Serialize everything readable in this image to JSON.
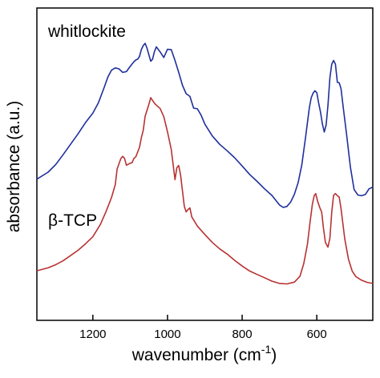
{
  "chart_data": {
    "type": "line",
    "title": "",
    "xlabel": "wavenumber (cm",
    "xlabel_sup": "-1",
    "xlabel_close": ")",
    "ylabel": "absorbance (a.u.)",
    "xlim": [
      1350,
      450
    ],
    "x_reversed": true,
    "ylim": [
      0,
      1
    ],
    "y_ticks_shown": false,
    "grid": false,
    "x_ticks": [
      1200,
      1000,
      800,
      600
    ],
    "x_tick_labels": [
      "1200",
      "1000",
      "800",
      "600"
    ],
    "series": [
      {
        "name": "whitlockite",
        "color": "#1f2f9c",
        "points": [
          [
            1350,
            0.472
          ],
          [
            1320,
            0.5
          ],
          [
            1300,
            0.53
          ],
          [
            1280,
            0.57
          ],
          [
            1260,
            0.612
          ],
          [
            1240,
            0.654
          ],
          [
            1220,
            0.699
          ],
          [
            1200,
            0.738
          ],
          [
            1185,
            0.78
          ],
          [
            1170,
            0.84
          ],
          [
            1160,
            0.883
          ],
          [
            1150,
            0.911
          ],
          [
            1140,
            0.92
          ],
          [
            1130,
            0.916
          ],
          [
            1120,
            0.902
          ],
          [
            1110,
            0.905
          ],
          [
            1100,
            0.926
          ],
          [
            1090,
            0.945
          ],
          [
            1085,
            0.952
          ],
          [
            1080,
            0.955
          ],
          [
            1075,
            0.966
          ],
          [
            1070,
            0.995
          ],
          [
            1065,
            1.01
          ],
          [
            1060,
            1.019
          ],
          [
            1055,
            1.0
          ],
          [
            1045,
            0.947
          ],
          [
            1040,
            0.955
          ],
          [
            1035,
            0.985
          ],
          [
            1030,
            1.005
          ],
          [
            1020,
            0.985
          ],
          [
            1010,
            0.962
          ],
          [
            1000,
            0.995
          ],
          [
            990,
            0.994
          ],
          [
            980,
            0.95
          ],
          [
            970,
            0.902
          ],
          [
            960,
            0.85
          ],
          [
            950,
            0.816
          ],
          [
            940,
            0.805
          ],
          [
            930,
            0.758
          ],
          [
            920,
            0.755
          ],
          [
            910,
            0.73
          ],
          [
            900,
            0.694
          ],
          [
            880,
            0.646
          ],
          [
            860,
            0.612
          ],
          [
            840,
            0.586
          ],
          [
            820,
            0.558
          ],
          [
            800,
            0.525
          ],
          [
            780,
            0.491
          ],
          [
            760,
            0.463
          ],
          [
            740,
            0.433
          ],
          [
            720,
            0.406
          ],
          [
            700,
            0.368
          ],
          [
            690,
            0.358
          ],
          [
            680,
            0.362
          ],
          [
            670,
            0.38
          ],
          [
            660,
            0.411
          ],
          [
            650,
            0.458
          ],
          [
            640,
            0.53
          ],
          [
            630,
            0.642
          ],
          [
            620,
            0.76
          ],
          [
            615,
            0.8
          ],
          [
            610,
            0.818
          ],
          [
            605,
            0.828
          ],
          [
            600,
            0.82
          ],
          [
            595,
            0.778
          ],
          [
            590,
            0.742
          ],
          [
            585,
            0.695
          ],
          [
            580,
            0.662
          ],
          [
            575,
            0.69
          ],
          [
            570,
            0.77
          ],
          [
            565,
            0.88
          ],
          [
            560,
            0.935
          ],
          [
            555,
            0.95
          ],
          [
            550,
            0.935
          ],
          [
            545,
            0.862
          ],
          [
            540,
            0.86
          ],
          [
            535,
            0.836
          ],
          [
            530,
            0.77
          ],
          [
            520,
            0.65
          ],
          [
            510,
            0.52
          ],
          [
            500,
            0.43
          ],
          [
            490,
            0.408
          ],
          [
            480,
            0.405
          ],
          [
            470,
            0.41
          ],
          [
            460,
            0.433
          ],
          [
            450,
            0.44
          ]
        ]
      },
      {
        "name": "β-TCP",
        "color": "#b83232",
        "points": [
          [
            1350,
            0.103
          ],
          [
            1320,
            0.115
          ],
          [
            1300,
            0.127
          ],
          [
            1280,
            0.143
          ],
          [
            1260,
            0.164
          ],
          [
            1240,
            0.185
          ],
          [
            1220,
            0.211
          ],
          [
            1200,
            0.24
          ],
          [
            1180,
            0.289
          ],
          [
            1165,
            0.34
          ],
          [
            1150,
            0.398
          ],
          [
            1140,
            0.45
          ],
          [
            1135,
            0.513
          ],
          [
            1125,
            0.555
          ],
          [
            1120,
            0.564
          ],
          [
            1115,
            0.555
          ],
          [
            1110,
            0.528
          ],
          [
            1100,
            0.536
          ],
          [
            1095,
            0.538
          ],
          [
            1090,
            0.555
          ],
          [
            1085,
            0.562
          ],
          [
            1075,
            0.6
          ],
          [
            1070,
            0.64
          ],
          [
            1065,
            0.669
          ],
          [
            1060,
            0.725
          ],
          [
            1050,
            0.773
          ],
          [
            1045,
            0.8
          ],
          [
            1040,
            0.789
          ],
          [
            1035,
            0.778
          ],
          [
            1030,
            0.77
          ],
          [
            1020,
            0.757
          ],
          [
            1010,
            0.724
          ],
          [
            1000,
            0.663
          ],
          [
            990,
            0.592
          ],
          [
            980,
            0.47
          ],
          [
            975,
            0.518
          ],
          [
            970,
            0.527
          ],
          [
            965,
            0.49
          ],
          [
            960,
            0.425
          ],
          [
            955,
            0.363
          ],
          [
            950,
            0.34
          ],
          [
            945,
            0.35
          ],
          [
            940,
            0.356
          ],
          [
            935,
            0.32
          ],
          [
            920,
            0.283
          ],
          [
            900,
            0.249
          ],
          [
            880,
            0.217
          ],
          [
            860,
            0.191
          ],
          [
            840,
            0.17
          ],
          [
            820,
            0.145
          ],
          [
            800,
            0.122
          ],
          [
            780,
            0.102
          ],
          [
            760,
            0.088
          ],
          [
            740,
            0.075
          ],
          [
            720,
            0.061
          ],
          [
            700,
            0.052
          ],
          [
            680,
            0.05
          ],
          [
            660,
            0.057
          ],
          [
            645,
            0.081
          ],
          [
            635,
            0.132
          ],
          [
            625,
            0.21
          ],
          [
            618,
            0.3
          ],
          [
            612,
            0.37
          ],
          [
            607,
            0.405
          ],
          [
            603,
            0.414
          ],
          [
            598,
            0.384
          ],
          [
            592,
            0.357
          ],
          [
            587,
            0.34
          ],
          [
            582,
            0.274
          ],
          [
            577,
            0.217
          ],
          [
            570,
            0.198
          ],
          [
            565,
            0.234
          ],
          [
            560,
            0.339
          ],
          [
            555,
            0.407
          ],
          [
            550,
            0.414
          ],
          [
            545,
            0.405
          ],
          [
            540,
            0.4
          ],
          [
            535,
            0.353
          ],
          [
            525,
            0.23
          ],
          [
            515,
            0.149
          ],
          [
            505,
            0.101
          ],
          [
            495,
            0.079
          ],
          [
            480,
            0.065
          ],
          [
            465,
            0.056
          ],
          [
            450,
            0.052
          ]
        ]
      }
    ],
    "annotations": [
      {
        "text": "whitlockite",
        "series": "whitlockite"
      },
      {
        "text": "β-TCP",
        "series": "β-TCP"
      }
    ]
  }
}
